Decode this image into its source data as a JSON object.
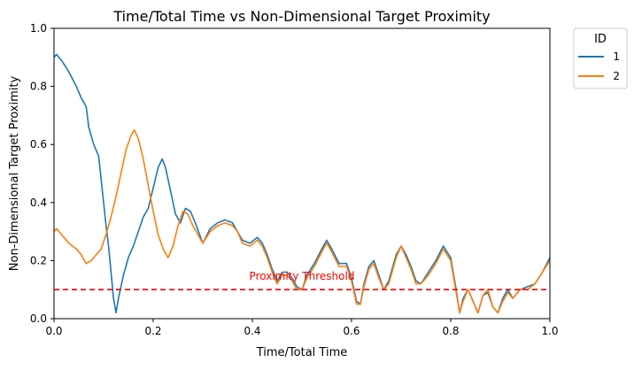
{
  "chart_data": {
    "type": "line",
    "title": "Time/Total Time vs Non-Dimensional Target Proximity",
    "xlabel": "Time/Total Time",
    "ylabel": "Non-Dimensional Target Proximity",
    "xlim": [
      0,
      1
    ],
    "ylim": [
      0,
      1
    ],
    "xticks": [
      "0.0",
      "0.2",
      "0.4",
      "0.6",
      "0.8",
      "1.0"
    ],
    "yticks": [
      "0.0",
      "0.2",
      "0.4",
      "0.6",
      "0.8",
      "1.0"
    ],
    "grid": false,
    "legend": {
      "title": "ID",
      "placement": "outside-top-right",
      "entries": [
        "1",
        "2"
      ]
    },
    "threshold": {
      "value": 0.1,
      "label": "Proximity Threshold",
      "color": "#ff0000",
      "style": "dashed"
    },
    "series": [
      {
        "name": "1",
        "color": "#1f77b4",
        "points": [
          [
            0.0,
            0.9
          ],
          [
            0.005,
            0.91
          ],
          [
            0.015,
            0.89
          ],
          [
            0.03,
            0.85
          ],
          [
            0.045,
            0.8
          ],
          [
            0.055,
            0.76
          ],
          [
            0.065,
            0.73
          ],
          [
            0.07,
            0.66
          ],
          [
            0.08,
            0.6
          ],
          [
            0.09,
            0.56
          ],
          [
            0.095,
            0.48
          ],
          [
            0.1,
            0.4
          ],
          [
            0.105,
            0.32
          ],
          [
            0.11,
            0.25
          ],
          [
            0.115,
            0.16
          ],
          [
            0.12,
            0.07
          ],
          [
            0.125,
            0.02
          ],
          [
            0.13,
            0.07
          ],
          [
            0.14,
            0.15
          ],
          [
            0.15,
            0.21
          ],
          [
            0.16,
            0.25
          ],
          [
            0.17,
            0.3
          ],
          [
            0.18,
            0.35
          ],
          [
            0.19,
            0.38
          ],
          [
            0.2,
            0.45
          ],
          [
            0.21,
            0.52
          ],
          [
            0.218,
            0.55
          ],
          [
            0.225,
            0.52
          ],
          [
            0.235,
            0.44
          ],
          [
            0.245,
            0.36
          ],
          [
            0.255,
            0.33
          ],
          [
            0.265,
            0.38
          ],
          [
            0.275,
            0.37
          ],
          [
            0.285,
            0.33
          ],
          [
            0.3,
            0.26
          ],
          [
            0.315,
            0.31
          ],
          [
            0.33,
            0.33
          ],
          [
            0.345,
            0.34
          ],
          [
            0.36,
            0.33
          ],
          [
            0.37,
            0.3
          ],
          [
            0.38,
            0.27
          ],
          [
            0.395,
            0.26
          ],
          [
            0.41,
            0.28
          ],
          [
            0.42,
            0.26
          ],
          [
            0.43,
            0.22
          ],
          [
            0.44,
            0.17
          ],
          [
            0.45,
            0.13
          ],
          [
            0.46,
            0.16
          ],
          [
            0.47,
            0.16
          ],
          [
            0.48,
            0.14
          ],
          [
            0.49,
            0.11
          ],
          [
            0.5,
            0.1
          ],
          [
            0.51,
            0.15
          ],
          [
            0.525,
            0.19
          ],
          [
            0.54,
            0.24
          ],
          [
            0.55,
            0.27
          ],
          [
            0.56,
            0.24
          ],
          [
            0.575,
            0.19
          ],
          [
            0.59,
            0.19
          ],
          [
            0.6,
            0.14
          ],
          [
            0.61,
            0.06
          ],
          [
            0.618,
            0.05
          ],
          [
            0.625,
            0.12
          ],
          [
            0.635,
            0.18
          ],
          [
            0.645,
            0.2
          ],
          [
            0.655,
            0.15
          ],
          [
            0.665,
            0.1
          ],
          [
            0.675,
            0.13
          ],
          [
            0.69,
            0.22
          ],
          [
            0.7,
            0.25
          ],
          [
            0.71,
            0.22
          ],
          [
            0.72,
            0.18
          ],
          [
            0.73,
            0.13
          ],
          [
            0.74,
            0.12
          ],
          [
            0.755,
            0.16
          ],
          [
            0.77,
            0.2
          ],
          [
            0.785,
            0.25
          ],
          [
            0.8,
            0.21
          ],
          [
            0.81,
            0.11
          ],
          [
            0.818,
            0.02
          ],
          [
            0.825,
            0.07
          ],
          [
            0.835,
            0.1
          ],
          [
            0.845,
            0.06
          ],
          [
            0.855,
            0.02
          ],
          [
            0.865,
            0.08
          ],
          [
            0.875,
            0.09
          ],
          [
            0.885,
            0.04
          ],
          [
            0.895,
            0.02
          ],
          [
            0.905,
            0.07
          ],
          [
            0.915,
            0.1
          ],
          [
            0.925,
            0.07
          ],
          [
            0.94,
            0.1
          ],
          [
            0.955,
            0.11
          ],
          [
            0.97,
            0.12
          ],
          [
            0.985,
            0.16
          ],
          [
            1.0,
            0.21
          ]
        ]
      },
      {
        "name": "2",
        "color": "#ff7f0e",
        "points": [
          [
            0.0,
            0.3
          ],
          [
            0.005,
            0.31
          ],
          [
            0.015,
            0.29
          ],
          [
            0.03,
            0.26
          ],
          [
            0.045,
            0.24
          ],
          [
            0.055,
            0.22
          ],
          [
            0.065,
            0.19
          ],
          [
            0.075,
            0.2
          ],
          [
            0.085,
            0.22
          ],
          [
            0.095,
            0.24
          ],
          [
            0.105,
            0.29
          ],
          [
            0.115,
            0.35
          ],
          [
            0.125,
            0.42
          ],
          [
            0.135,
            0.5
          ],
          [
            0.145,
            0.58
          ],
          [
            0.155,
            0.63
          ],
          [
            0.162,
            0.65
          ],
          [
            0.17,
            0.62
          ],
          [
            0.18,
            0.55
          ],
          [
            0.19,
            0.46
          ],
          [
            0.2,
            0.37
          ],
          [
            0.21,
            0.29
          ],
          [
            0.22,
            0.24
          ],
          [
            0.23,
            0.21
          ],
          [
            0.24,
            0.25
          ],
          [
            0.25,
            0.32
          ],
          [
            0.26,
            0.37
          ],
          [
            0.27,
            0.36
          ],
          [
            0.28,
            0.32
          ],
          [
            0.3,
            0.26
          ],
          [
            0.315,
            0.3
          ],
          [
            0.33,
            0.32
          ],
          [
            0.345,
            0.33
          ],
          [
            0.36,
            0.32
          ],
          [
            0.37,
            0.3
          ],
          [
            0.38,
            0.26
          ],
          [
            0.395,
            0.25
          ],
          [
            0.41,
            0.27
          ],
          [
            0.42,
            0.25
          ],
          [
            0.43,
            0.21
          ],
          [
            0.44,
            0.16
          ],
          [
            0.45,
            0.12
          ],
          [
            0.46,
            0.15
          ],
          [
            0.47,
            0.15
          ],
          [
            0.48,
            0.13
          ],
          [
            0.49,
            0.1
          ],
          [
            0.5,
            0.1
          ],
          [
            0.51,
            0.14
          ],
          [
            0.525,
            0.18
          ],
          [
            0.54,
            0.23
          ],
          [
            0.55,
            0.26
          ],
          [
            0.56,
            0.23
          ],
          [
            0.575,
            0.18
          ],
          [
            0.59,
            0.18
          ],
          [
            0.6,
            0.13
          ],
          [
            0.61,
            0.05
          ],
          [
            0.618,
            0.05
          ],
          [
            0.625,
            0.11
          ],
          [
            0.635,
            0.17
          ],
          [
            0.645,
            0.19
          ],
          [
            0.655,
            0.14
          ],
          [
            0.665,
            0.1
          ],
          [
            0.675,
            0.12
          ],
          [
            0.69,
            0.21
          ],
          [
            0.7,
            0.25
          ],
          [
            0.71,
            0.21
          ],
          [
            0.72,
            0.17
          ],
          [
            0.73,
            0.12
          ],
          [
            0.74,
            0.12
          ],
          [
            0.755,
            0.15
          ],
          [
            0.77,
            0.19
          ],
          [
            0.785,
            0.24
          ],
          [
            0.8,
            0.2
          ],
          [
            0.81,
            0.1
          ],
          [
            0.818,
            0.02
          ],
          [
            0.825,
            0.06
          ],
          [
            0.835,
            0.1
          ],
          [
            0.845,
            0.06
          ],
          [
            0.855,
            0.02
          ],
          [
            0.865,
            0.08
          ],
          [
            0.875,
            0.1
          ],
          [
            0.885,
            0.04
          ],
          [
            0.895,
            0.02
          ],
          [
            0.905,
            0.06
          ],
          [
            0.915,
            0.09
          ],
          [
            0.925,
            0.07
          ],
          [
            0.94,
            0.1
          ],
          [
            0.955,
            0.1
          ],
          [
            0.97,
            0.12
          ],
          [
            0.985,
            0.16
          ],
          [
            1.0,
            0.2
          ]
        ]
      }
    ]
  }
}
